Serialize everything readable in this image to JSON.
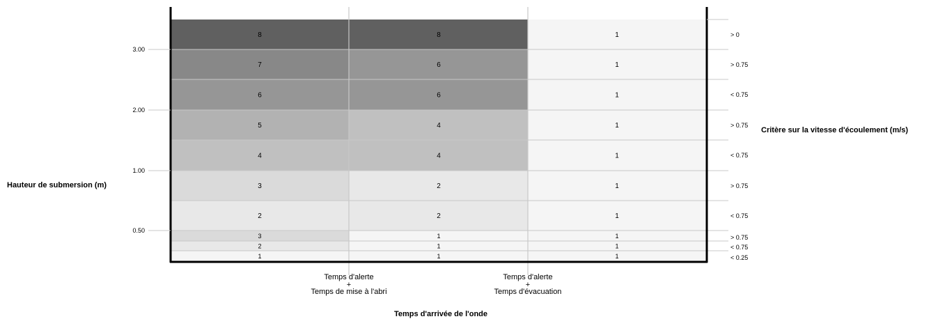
{
  "chart_data": {
    "type": "heatmap",
    "title": "",
    "ylabel": "Hauteur de submersion (m)",
    "xlabel": "Temps d'arrivée de l'onde",
    "right_label": "Critère sur la vitesse d'écoulement (m/s)",
    "y_ticks": [
      "3.00",
      "2.00",
      "1.00",
      "0.50"
    ],
    "x_ticks": [
      [
        "Temps d'alerte",
        "+",
        "Temps de mise à l'abri"
      ],
      [
        "Temps d'alerte",
        "+",
        "Temps d'évacuation"
      ]
    ],
    "row_velocity_criteria": [
      "> 0",
      "> 0.75",
      "< 0.75",
      "> 0.75",
      "< 0.75",
      "> 0.75",
      "< 0.75",
      "> 0.75",
      "< 0.75",
      "< 0.25"
    ],
    "columns": 3,
    "rows": [
      [
        8,
        8,
        1
      ],
      [
        7,
        6,
        1
      ],
      [
        6,
        6,
        1
      ],
      [
        5,
        4,
        1
      ],
      [
        4,
        4,
        1
      ],
      [
        3,
        2,
        1
      ],
      [
        2,
        2,
        1
      ],
      [
        3,
        1,
        1
      ],
      [
        2,
        1,
        1
      ],
      [
        1,
        1,
        1
      ]
    ],
    "color_scale": {
      "1": "#f5f5f5",
      "2": "#e8e8e8",
      "3": "#dadada",
      "4": "#c0c0c0",
      "5": "#b2b2b2",
      "6": "#969696",
      "7": "#888888",
      "8": "#606060"
    },
    "grid": true
  }
}
